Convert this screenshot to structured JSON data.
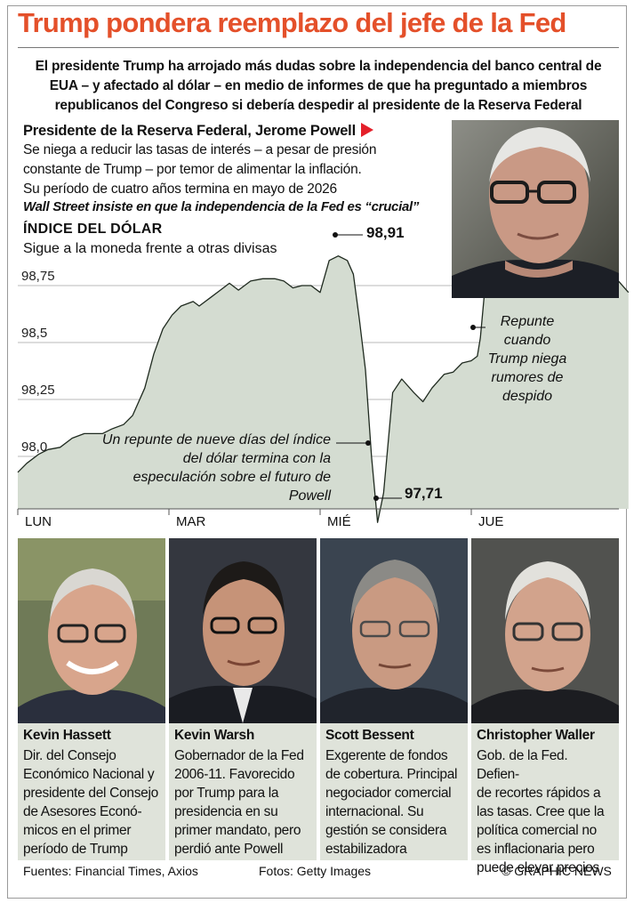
{
  "header": {
    "title": "Trump pondera reemplazo del jefe de la Fed",
    "intro": "El presidente Trump ha arrojado más dudas sobre la independencia del banco central de EUA – y afectado al dólar – en medio de informes de que ha preguntado a miembros republicanos del Congreso si debería despedir al presidente de la Reserva Federal"
  },
  "powell": {
    "heading": "Presidente de la Reserva Federal, Jerome Powell",
    "line1": "Se niega a reducir las tasas de interés – a pesar de presión",
    "line2": "constante de Trump – por temor de alimentar la inflación.",
    "line3": "Su período de cuatro años termina en mayo de 2026",
    "line4": "Wall Street insiste en que la independencia de la Fed es “crucial”",
    "photo_icon": "jerome-powell-portrait"
  },
  "chart_data": {
    "type": "area",
    "title": "ÍNDICE DEL DÓLAR",
    "subtitle": "Sigue a la moneda frente a otras divisas",
    "x_categories": [
      "LUN",
      "MAR",
      "MIÉ",
      "JUE"
    ],
    "y_ticks": [
      98.0,
      98.25,
      98.5,
      98.75
    ],
    "y_tick_labels": [
      "98,0",
      "98,25",
      "98,5",
      "98,75"
    ],
    "ylim": [
      97.65,
      98.98
    ],
    "grid": true,
    "series": [
      {
        "x": [
          0.0,
          0.06,
          0.14,
          0.2,
          0.28,
          0.36,
          0.44,
          0.5,
          0.56,
          0.62,
          0.7,
          0.76,
          0.84,
          0.9,
          0.96,
          1.02,
          1.08,
          1.16,
          1.2,
          1.28,
          1.34,
          1.4,
          1.46,
          1.54,
          1.62,
          1.7,
          1.76,
          1.82,
          1.88,
          1.94,
          2.0,
          2.06,
          2.12,
          2.18,
          2.22,
          2.26,
          2.3,
          2.34,
          2.38,
          2.42,
          2.48,
          2.54,
          2.62,
          2.68,
          2.74,
          2.82,
          2.88,
          2.94,
          3.0,
          3.04,
          3.06,
          3.1,
          3.16,
          3.24,
          3.32,
          3.4,
          3.48,
          3.56,
          3.64,
          3.72,
          3.8,
          3.88,
          3.96,
          4.04
        ],
        "y": [
          97.93,
          97.97,
          98.01,
          98.03,
          98.04,
          98.08,
          98.1,
          98.1,
          98.1,
          98.12,
          98.14,
          98.18,
          98.3,
          98.45,
          98.56,
          98.62,
          98.66,
          98.68,
          98.66,
          98.7,
          98.73,
          98.76,
          98.73,
          98.77,
          98.78,
          98.78,
          98.77,
          98.74,
          98.75,
          98.75,
          98.72,
          98.86,
          98.88,
          98.86,
          98.8,
          98.6,
          98.38,
          98.0,
          97.71,
          97.84,
          98.28,
          98.34,
          98.28,
          98.24,
          98.3,
          98.36,
          98.37,
          98.41,
          98.42,
          98.44,
          98.52,
          98.81,
          98.79,
          98.8,
          98.77,
          98.79,
          98.76,
          98.81,
          98.8,
          98.84,
          98.82,
          98.8,
          98.78,
          98.72
        ]
      }
    ],
    "annotations": {
      "peak_value": "98,91",
      "low_value": "97,71",
      "drop_note": "Un repunte de nueve días del índice del dólar termina con la especulación sobre el futuro de Powell",
      "rebound_note": "Repunte cuando Trump niega rumores de despido"
    }
  },
  "candidates": [
    {
      "name": "Kevin Hassett",
      "desc": "Dir. del Consejo Económico Nacional y presidente del Consejo de Asesores Económicos en el primer período de Trump",
      "desc_lines": [
        "Dir. del Consejo",
        "Económico Nacional y",
        "presidente del Consejo",
        "de Asesores Econó-",
        "micos en el primer",
        "período de Trump"
      ],
      "photo_icon": "kevin-hassett-portrait"
    },
    {
      "name": "Kevin Warsh",
      "desc": "Gobernador de la Fed 2006-11. Favorecido por Trump para la presidencia en su primer mandato, pero perdió ante Powell",
      "desc_lines": [
        "Gobernador de la Fed",
        "2006-11. Favorecido",
        "por Trump para la",
        "presidencia en su",
        "primer mandato, pero",
        "perdió ante Powell"
      ],
      "photo_icon": "kevin-warsh-portrait"
    },
    {
      "name": "Scott Bessent",
      "desc": "Exgerente de fondos de cobertura. Principal negociador comercial internacional. Su gestión se considera estabilizadora",
      "desc_lines": [
        "Exgerente de fondos",
        "de cobertura. Principal",
        "negociador comercial",
        "internacional. Su",
        "gestión se considera",
        "estabilizadora"
      ],
      "photo_icon": "scott-bessent-portrait"
    },
    {
      "name": "Christopher Waller",
      "desc": "Gob. de la Fed. Defiende recortes rápidos a las tasas. Cree que la política comercial no es inflacionaria pero puede elevar precios",
      "desc_lines": [
        "Gob. de la Fed. Defien-",
        "de recortes rápidos a",
        "las tasas. Cree que la",
        "política comercial no",
        "es inflacionaria pero",
        "puede elevar precios"
      ],
      "photo_icon": "christopher-waller-portrait"
    }
  ],
  "footer": {
    "sources": "Fuentes: Financial Times, Axios",
    "photos": "Fotos: Getty Images",
    "credit": "© GRAPHIC NEWS"
  },
  "colors": {
    "title": "#e4502a",
    "accent_triangle": "#e4202a",
    "area_fill": "#d4dcd1",
    "area_line": "#1f2a1f",
    "bio_box": "#dfe3da"
  }
}
